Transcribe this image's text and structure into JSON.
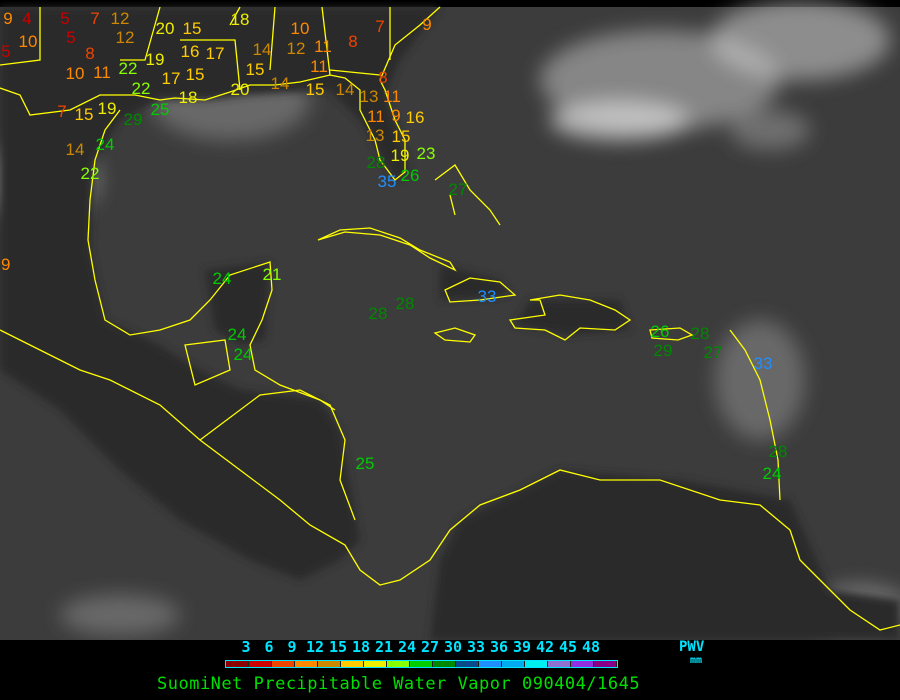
{
  "title": "SuomiNet Precipitable Water Vapor 090404/1645",
  "legend": {
    "unit_label": "PWV",
    "unit": "mm",
    "ticks": [
      "3",
      "6",
      "9",
      "12",
      "15",
      "18",
      "21",
      "24",
      "27",
      "30",
      "33",
      "36",
      "39",
      "42",
      "45",
      "48"
    ],
    "colors": [
      "#8b0000",
      "#cc0000",
      "#ee4400",
      "#ff8800",
      "#cc8800",
      "#ffcc00",
      "#eeee00",
      "#88ff00",
      "#00cc00",
      "#008800",
      "#0a4a8a",
      "#1f8fff",
      "#00aaee",
      "#00eeee",
      "#9070d0",
      "#9030e0",
      "#880088"
    ]
  },
  "colors": {
    "background": "#3a3a3a",
    "land": "#2e2e2e",
    "coastline": "#ffff00"
  },
  "stations": [
    "9",
    "4",
    "5",
    "10",
    "5",
    "5",
    "7",
    "12",
    "12",
    "20",
    "15",
    "18",
    "8",
    "10",
    "11",
    "22",
    "19",
    "17",
    "16",
    "15",
    "17",
    "14",
    "10",
    "12",
    "11",
    "11",
    "8",
    "7",
    "9",
    "22",
    "18",
    "20",
    "15",
    "14",
    "15",
    "14",
    "13",
    "11",
    "8",
    "9",
    "11",
    "13",
    "15",
    "16",
    "19",
    "23",
    "28",
    "26",
    "35",
    "7",
    "15",
    "19",
    "29",
    "25",
    "24",
    "14",
    "22",
    "9",
    "24",
    "21",
    "24",
    "24",
    "28",
    "28",
    "33",
    "26",
    "29",
    "28",
    "27",
    "33",
    "28",
    "24",
    "25",
    "27"
  ]
}
